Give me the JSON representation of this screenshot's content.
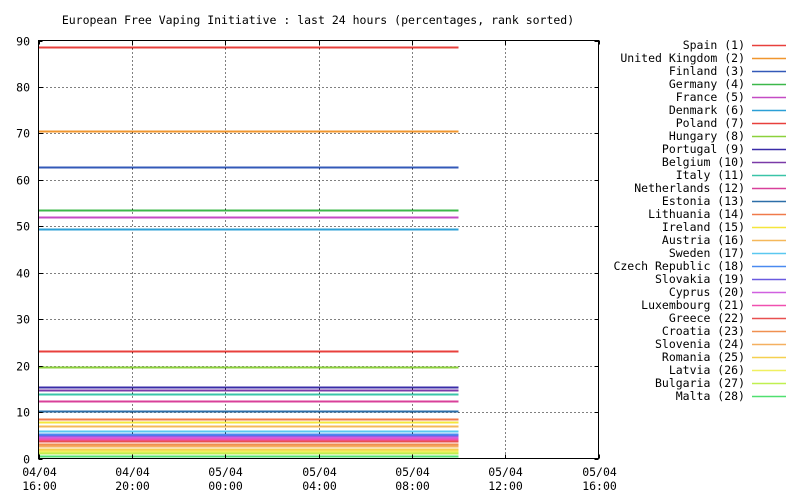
{
  "chart_data": {
    "type": "line",
    "title": "European Free Vaping Initiative : last 24 hours (percentages, rank sorted)",
    "xlabel": "",
    "ylabel": "",
    "ylim": [
      0,
      90
    ],
    "yticks": [
      0,
      10,
      20,
      30,
      40,
      50,
      60,
      70,
      80,
      90
    ],
    "x_range": [
      "04/04 16:00",
      "05/04 16:00"
    ],
    "x_data_range": [
      "04/04 16:00",
      "05/04 10:00"
    ],
    "xticks": [
      {
        "date": "04/04",
        "time": "16:00"
      },
      {
        "date": "04/04",
        "time": "20:00"
      },
      {
        "date": "05/04",
        "time": "00:00"
      },
      {
        "date": "05/04",
        "time": "04:00"
      },
      {
        "date": "05/04",
        "time": "08:00"
      },
      {
        "date": "05/04",
        "time": "12:00"
      },
      {
        "date": "05/04",
        "time": "16:00"
      }
    ],
    "grid": true,
    "legend_position": "right",
    "series": [
      {
        "name": "Spain (1)",
        "value": 88.7,
        "color": "#e8403c"
      },
      {
        "name": "United Kingdom (2)",
        "value": 70.5,
        "color": "#f0962e"
      },
      {
        "name": "Finland (3)",
        "value": 62.7,
        "color": "#3359b8"
      },
      {
        "name": "Germany (4)",
        "value": 53.4,
        "color": "#3cb84a"
      },
      {
        "name": "France (5)",
        "value": 52.1,
        "color": "#c44bc4"
      },
      {
        "name": "Denmark (6)",
        "value": 49.5,
        "color": "#2b9fd6"
      },
      {
        "name": "Poland (7)",
        "value": 23.1,
        "color": "#e8403c"
      },
      {
        "name": "Hungary (8)",
        "value": 19.8,
        "color": "#8cd13c"
      },
      {
        "name": "Portugal (9)",
        "value": 15.4,
        "color": "#3a2ca8"
      },
      {
        "name": "Belgium (10)",
        "value": 14.8,
        "color": "#7a3aa8"
      },
      {
        "name": "Italy (11)",
        "value": 13.9,
        "color": "#3ac4a8"
      },
      {
        "name": "Netherlands (12)",
        "value": 12.3,
        "color": "#d8409a"
      },
      {
        "name": "Estonia (13)",
        "value": 10.3,
        "color": "#2c6ea8"
      },
      {
        "name": "Lithuania (14)",
        "value": 8.6,
        "color": "#f07a4a"
      },
      {
        "name": "Ireland (15)",
        "value": 7.8,
        "color": "#f5e63c"
      },
      {
        "name": "Austria (16)",
        "value": 7.1,
        "color": "#f5b85a"
      },
      {
        "name": "Sweden (17)",
        "value": 5.9,
        "color": "#5ac8f0"
      },
      {
        "name": "Czech Republic (18)",
        "value": 5.3,
        "color": "#4a8af0"
      },
      {
        "name": "Slovakia (19)",
        "value": 4.9,
        "color": "#6a5ae0"
      },
      {
        "name": "Cyprus (20)",
        "value": 4.6,
        "color": "#d060e0"
      },
      {
        "name": "Luxembourg (21)",
        "value": 4.2,
        "color": "#f050b0"
      },
      {
        "name": "Greece (22)",
        "value": 3.8,
        "color": "#e85050"
      },
      {
        "name": "Croatia (23)",
        "value": 3.1,
        "color": "#f09050"
      },
      {
        "name": "Slovenia (24)",
        "value": 2.6,
        "color": "#f5b060"
      },
      {
        "name": "Romania (25)",
        "value": 2.1,
        "color": "#f5d050"
      },
      {
        "name": "Latvia (26)",
        "value": 1.6,
        "color": "#f0f060"
      },
      {
        "name": "Bulgaria (27)",
        "value": 1.1,
        "color": "#c0f050"
      },
      {
        "name": "Malta (28)",
        "value": 0.6,
        "color": "#50e070"
      }
    ]
  }
}
